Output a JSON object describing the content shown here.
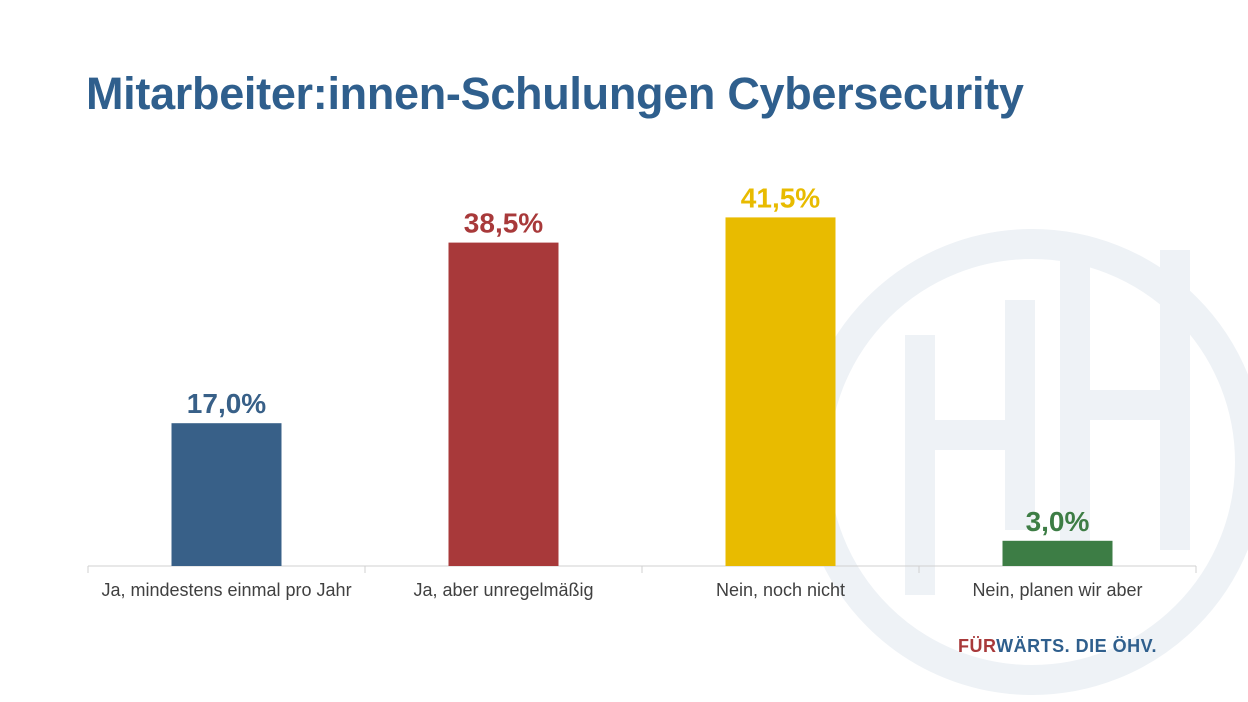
{
  "slide": {
    "title": "Mitarbeiter:innen-Schulungen Cybersecurity",
    "tagline_highlight": "FÜR",
    "tagline_rest": "WÄRTS. DIE ÖHV.",
    "watermark_logo": "ÖHV",
    "watermark_color": "#eef2f6"
  },
  "chart_data": {
    "type": "bar",
    "title": "Mitarbeiter:innen-Schulungen Cybersecurity",
    "categories": [
      "Ja, mindestens einmal pro Jahr",
      "Ja, aber unregelmäßig",
      "Nein, noch nicht",
      "Nein, planen wir aber"
    ],
    "values": [
      17.0,
      38.5,
      41.5,
      3.0
    ],
    "data_labels": [
      "17,0%",
      "38,5%",
      "41,5%",
      "3,0%"
    ],
    "colors": [
      "#386088",
      "#a8393a",
      "#e8bb00",
      "#3d7d45"
    ],
    "unit": "%",
    "ylim": [
      0,
      45
    ],
    "grid": false,
    "legend": "none"
  }
}
